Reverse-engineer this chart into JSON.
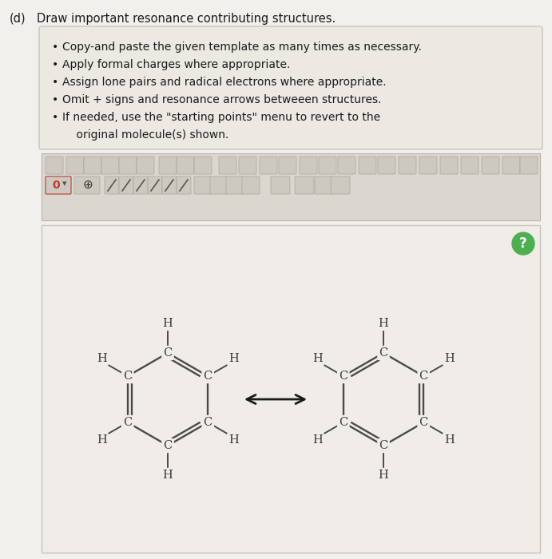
{
  "bg_color": "#f2f0ec",
  "instr_box_color": "#ece9e3",
  "instr_box_edge": "#c8c4bc",
  "toolbar_bg": "#dbd7d0",
  "toolbar_edge": "#b8b4ac",
  "draw_area_bg": "#f0ede8",
  "draw_area_edge": "#c8c4bc",
  "bond_color": "#4a4a4a",
  "atom_color": "#3a3a3a",
  "arrow_color": "#1a1a1a",
  "qmark_bg": "#4caf50",
  "qmark_color": "#ffffff",
  "title_color": "#1a1a1a",
  "instr_color": "#1a1a1a",
  "fig_width": 6.91,
  "fig_height": 7.0,
  "instructions": [
    "Copy-and paste the given template as many times as necessary.",
    "Apply formal charges where appropriate.",
    "Assign lone pairs and radical electrons where appropriate.",
    "Omit + signs and resonance arrows betweeen structures.",
    "If needed, use the \"starting points\" menu to revert to the",
    "original molecule(s) shown."
  ]
}
